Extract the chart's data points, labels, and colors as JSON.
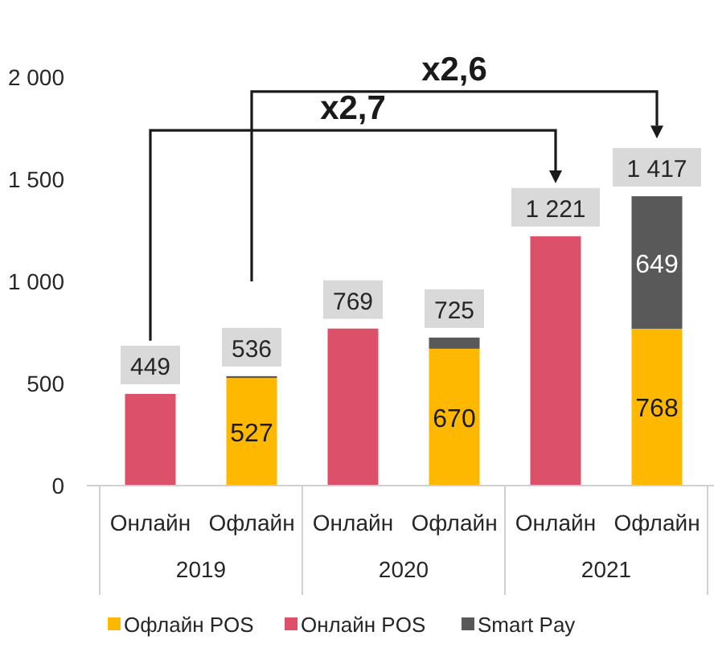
{
  "chart_data": {
    "type": "bar",
    "stacked": true,
    "categories": [
      "Онлайн",
      "Офлайн",
      "Онлайн",
      "Офлайн",
      "Онлайн",
      "Офлайн"
    ],
    "series": [
      {
        "name": "Офлайн POS",
        "color": "#ffb800",
        "values": [
          null,
          527,
          null,
          670,
          null,
          768
        ],
        "value_labels": [
          null,
          "527",
          null,
          "670",
          null,
          "768"
        ]
      },
      {
        "name": "Онлайн POS",
        "color": "#dc506a",
        "values": [
          449,
          null,
          769,
          null,
          1221,
          null
        ]
      },
      {
        "name": "Smart Pay",
        "color": "#595959",
        "values": [
          null,
          9,
          null,
          55,
          null,
          649
        ],
        "value_labels": [
          null,
          null,
          null,
          null,
          null,
          "649"
        ]
      }
    ],
    "totals": [
      "449",
      "536",
      "769",
      "725",
      "1 221",
      "1 417"
    ],
    "ylim": [
      0,
      2000
    ],
    "yticks": [
      0,
      500,
      {
        "value": 1000,
        "label": "1 000"
      },
      {
        "value": 1500,
        "label": "1 500"
      },
      {
        "value": 2000,
        "label": "2 000"
      }
    ],
    "grid": false,
    "legend": "bottom",
    "annotations": [
      "x2,6",
      "x2,7",
      "2019",
      "2020",
      "2021"
    ]
  }
}
